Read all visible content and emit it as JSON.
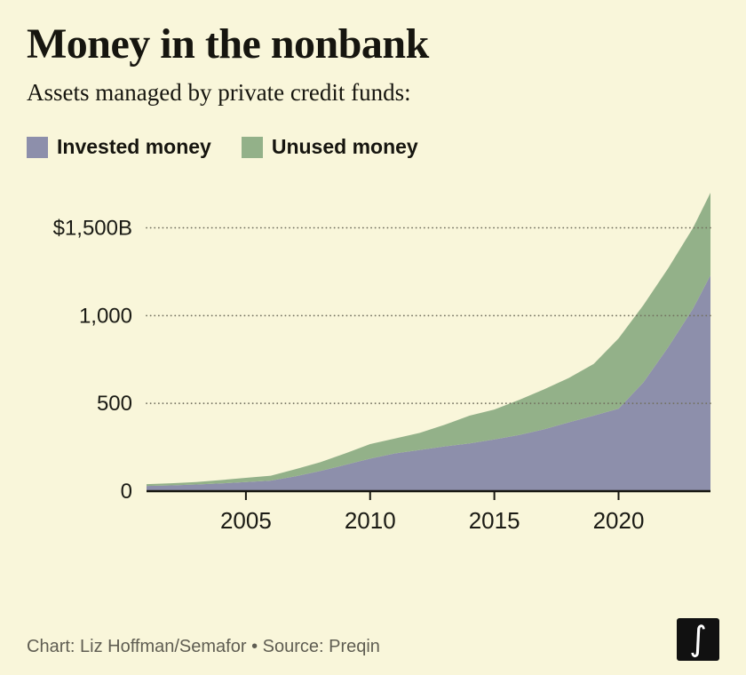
{
  "header": {
    "title": "Money in the nonbank",
    "subtitle": "Assets managed by private credit funds:"
  },
  "legend": [
    {
      "label": "Invested money",
      "color": "#8d8fab"
    },
    {
      "label": "Unused money",
      "color": "#93b189"
    }
  ],
  "footer": {
    "credit": "Chart: Liz Hoffman/Semafor • Source: Preqin",
    "logo_glyph": "∫"
  },
  "chart_data": {
    "type": "area",
    "stacked": true,
    "title": "Money in the nonbank",
    "subtitle": "Assets managed by private credit funds:",
    "unit": "billions of USD",
    "x": [
      2001,
      2002,
      2003,
      2004,
      2005,
      2006,
      2007,
      2008,
      2009,
      2010,
      2011,
      2012,
      2013,
      2014,
      2015,
      2016,
      2017,
      2018,
      2019,
      2020,
      2021,
      2022,
      2023,
      2023.7
    ],
    "series": [
      {
        "name": "Invested money",
        "color": "#8d8fab",
        "values": [
          30,
          33,
          38,
          44,
          52,
          60,
          85,
          115,
          150,
          185,
          215,
          235,
          255,
          272,
          295,
          320,
          352,
          392,
          430,
          470,
          620,
          820,
          1040,
          1230
        ]
      },
      {
        "name": "Unused money",
        "color": "#93b189",
        "values": [
          10,
          12,
          14,
          19,
          24,
          28,
          40,
          50,
          65,
          83,
          85,
          97,
          123,
          158,
          170,
          200,
          228,
          253,
          295,
          400,
          440,
          450,
          460,
          470
        ]
      }
    ],
    "totals": [
      40,
      45,
      52,
      63,
      76,
      88,
      125,
      165,
      215,
      268,
      300,
      332,
      378,
      430,
      465,
      520,
      580,
      645,
      725,
      870,
      1060,
      1270,
      1500,
      1700
    ],
    "ylim": [
      0,
      1700
    ],
    "yticks": [
      {
        "value": 0,
        "label": "0"
      },
      {
        "value": 500,
        "label": "500"
      },
      {
        "value": 1000,
        "label": "1,000"
      },
      {
        "value": 1500,
        "label": "$1,500B"
      }
    ],
    "xticks": [
      2005,
      2010,
      2015,
      2020
    ],
    "grid": "dotted-horizontal",
    "legend_position": "top-left"
  }
}
